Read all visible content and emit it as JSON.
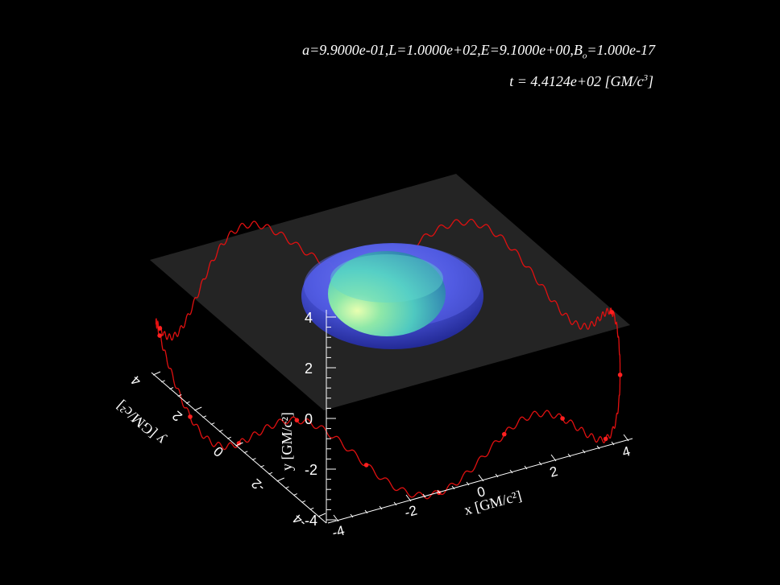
{
  "header": {
    "params_main": "a=9.9000e-01,L=1.0000e+02,E=9.1000e+00,B",
    "params_sub": "o",
    "params_tail": "=1.000e-17",
    "time_prefix": "t =   4.4124e+02 [GM/c",
    "time_sup": "3",
    "time_suffix": "]"
  },
  "axes": {
    "x_label": "x [GM/c²]",
    "y_label": "y [GM/c²]",
    "z_label": "y [GM/c²]",
    "x_ticks": [
      "-4",
      "-2",
      "0",
      "2",
      "4"
    ],
    "y_ticks": [
      "4",
      "2",
      "0",
      "-2",
      "-4"
    ],
    "z_ticks": [
      "4",
      "2",
      "0",
      "-2",
      "-4"
    ]
  },
  "colors": {
    "background": "#000000",
    "trajectory": "#e01010",
    "plane": "#2a2a2a",
    "ergosphere": "#4a55e0",
    "horizon": "#4fc9c0",
    "axis": "#ffffff"
  }
}
